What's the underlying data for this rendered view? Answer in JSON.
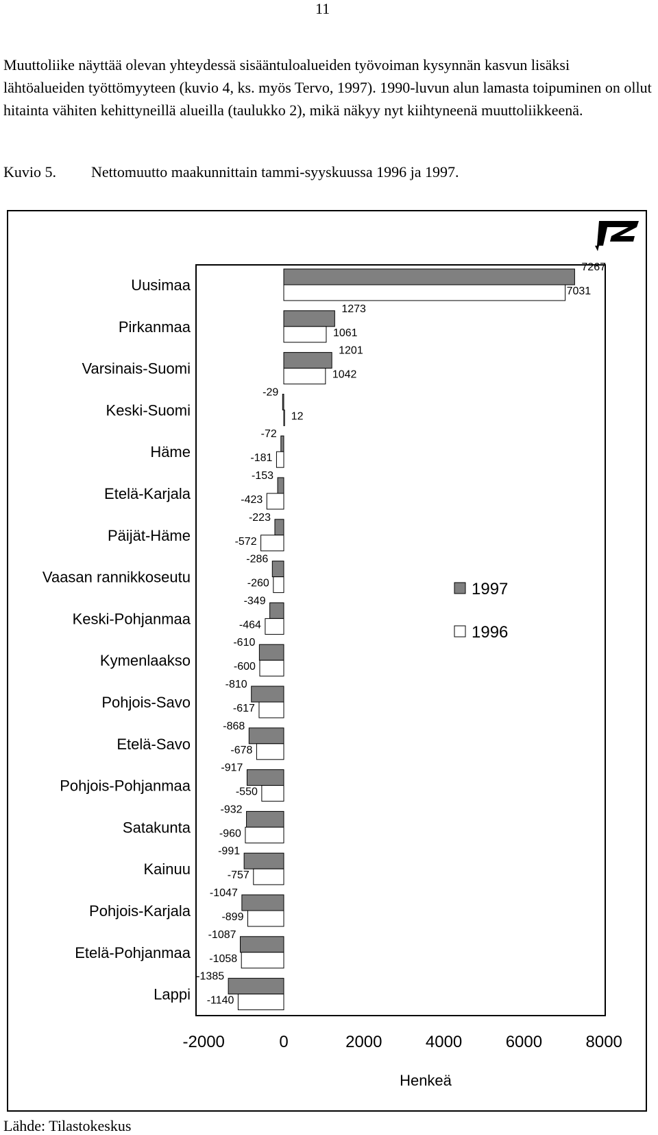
{
  "page_number": "11",
  "paragraph": "Muuttoliike näyttää olevan yhteydessä sisääntuloalueiden työvoiman kysynnän kasvun lisäksi lähtöalueiden työttömyyteen (kuvio 4, ks. myös Tervo, 1997). 1990-luvun alun lamasta toipuminen on ollut hitainta vähiten kehittyneillä alueilla (taulukko 2), mikä näkyy nyt kiihtyneenä muuttoliikkeenä.",
  "caption": {
    "number": "Kuvio 5.",
    "text": "Nettomuutto maakunnittain tammi-syyskuussa 1996 ja 1997."
  },
  "source": "Lähde: Tilastokeskus",
  "logo_icon": "pt-logo-icon",
  "colors": {
    "series_1997": "#808080",
    "series_1996": "#ffffff",
    "stroke": "#000000"
  },
  "chart_data": {
    "type": "bar",
    "orientation": "horizontal",
    "categories": [
      "Uusimaa",
      "Pirkanmaa",
      "Varsinais-Suomi",
      "Keski-Suomi",
      "Häme",
      "Etelä-Karjala",
      "Päijät-Häme",
      "Vaasan rannikkoseutu",
      "Keski-Pohjanmaa",
      "Kymenlaakso",
      "Pohjois-Savo",
      "Etelä-Savo",
      "Pohjois-Pohjanmaa",
      "Satakunta",
      "Kainuu",
      "Pohjois-Karjala",
      "Etelä-Pohjanmaa",
      "Lappi"
    ],
    "series": [
      {
        "name": "1997",
        "values": [
          7267,
          1273,
          1201,
          -29,
          -72,
          -153,
          -223,
          -286,
          -349,
          -610,
          -810,
          -868,
          -917,
          -932,
          -991,
          -1047,
          -1087,
          -1385
        ]
      },
      {
        "name": "1996",
        "values": [
          7031,
          1061,
          1042,
          12,
          -181,
          -423,
          -572,
          -260,
          -464,
          -600,
          -617,
          -678,
          -550,
          -960,
          -757,
          -899,
          -1058,
          -1140
        ]
      }
    ],
    "xlim": [
      -2000,
      8000
    ],
    "xticks": [
      "-2000",
      "0",
      "2000",
      "4000",
      "6000",
      "8000"
    ],
    "xlabel": "Henkeä",
    "legend": [
      "1997",
      "1996"
    ],
    "legend_position": "right-middle",
    "grid": false
  }
}
